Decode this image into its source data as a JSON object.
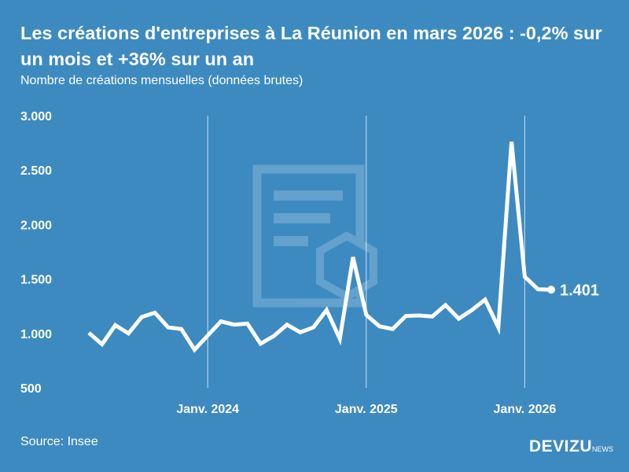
{
  "title": "Les créations d'entreprises à La Réunion en mars 2026 : -0,2% sur un mois et +36% sur un an",
  "subtitle": "Nombre de créations mensuelles (données brutes)",
  "source": "Source: Insee",
  "logo": {
    "main": "DEVIZU",
    "suffix": "NEWS"
  },
  "colors": {
    "background": "#3d8ac1",
    "line": "#ffffff"
  },
  "chart_data": {
    "type": "line",
    "title": "Les créations d'entreprises à La Réunion en mars 2026 : -0,2% sur un mois et +36% sur un an",
    "subtitle": "Nombre de créations mensuelles (données brutes)",
    "ylim": [
      500,
      3000
    ],
    "yticks": [
      "3.000",
      "2.500",
      "2.000",
      "1.500",
      "1.000",
      "500"
    ],
    "ytick_values": [
      3000,
      2500,
      2000,
      1500,
      1000,
      500
    ],
    "xticks": [
      {
        "label": "Janv. 2024",
        "x": "2024-01"
      },
      {
        "label": "Janv. 2025",
        "x": "2025-01"
      },
      {
        "label": "Janv. 2026",
        "x": "2026-01"
      }
    ],
    "grid": "vertical lines at January",
    "x": [
      "2023-04",
      "2023-05",
      "2023-06",
      "2023-07",
      "2023-08",
      "2023-09",
      "2023-10",
      "2023-11",
      "2023-12",
      "2024-01",
      "2024-02",
      "2024-03",
      "2024-04",
      "2024-05",
      "2024-06",
      "2024-07",
      "2024-08",
      "2024-09",
      "2024-10",
      "2024-11",
      "2024-12",
      "2025-01",
      "2025-02",
      "2025-03",
      "2025-04",
      "2025-05",
      "2025-06",
      "2025-07",
      "2025-08",
      "2025-09",
      "2025-10",
      "2025-11",
      "2025-12",
      "2026-01",
      "2026-02",
      "2026-03"
    ],
    "values": [
      1005,
      900,
      1075,
      1000,
      1150,
      1190,
      1055,
      1040,
      850,
      980,
      1110,
      1080,
      1090,
      905,
      975,
      1080,
      1010,
      1055,
      1215,
      950,
      1700,
      1170,
      1065,
      1040,
      1160,
      1165,
      1155,
      1260,
      1135,
      1215,
      1310,
      1055,
      2760,
      1520,
      1405,
      1401
    ],
    "last_label": "1.401"
  }
}
